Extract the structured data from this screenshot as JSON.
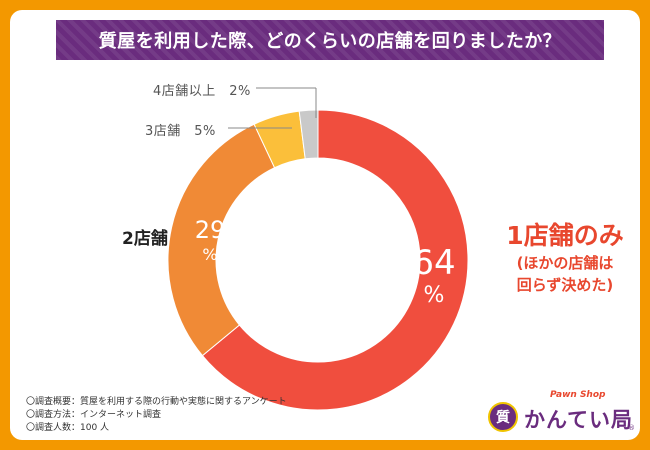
{
  "title": "質屋を利用した際、どのくらいの店舗を回りましたか？",
  "chart_data": {
    "type": "pie",
    "variant": "donut",
    "title": "質屋を利用した際、どのくらいの店舗を回りましたか？",
    "categories": [
      "1店舗のみ",
      "2店舗",
      "3店舗",
      "4店舗以上"
    ],
    "values": [
      64,
      29,
      5,
      2
    ],
    "unit": "%",
    "colors": [
      "#f04e3e",
      "#f08a36",
      "#fbbf3a",
      "#c9c9c9"
    ],
    "labels": {
      "one_store": {
        "line1": "1店舗のみ",
        "line2": "(ほかの店舗は",
        "line3": "回らず決めた)"
      },
      "two_store": "2店舗",
      "three_store": "3店舗　5%",
      "four_store": "4店舗以上　2%"
    },
    "inner_values": {
      "one": {
        "num": "64",
        "pct": "%"
      },
      "two": {
        "num": "29",
        "pct": "%"
      }
    }
  },
  "notes": [
    "〇調査概要：質屋を利用する際の行動や実態に関するアンケート",
    "〇調査方法：インターネット調査",
    "〇調査人数：100 人"
  ],
  "logo": {
    "tagline": "Pawn Shop",
    "name": "かんてい局",
    "badge": "質",
    "reg": "®"
  }
}
